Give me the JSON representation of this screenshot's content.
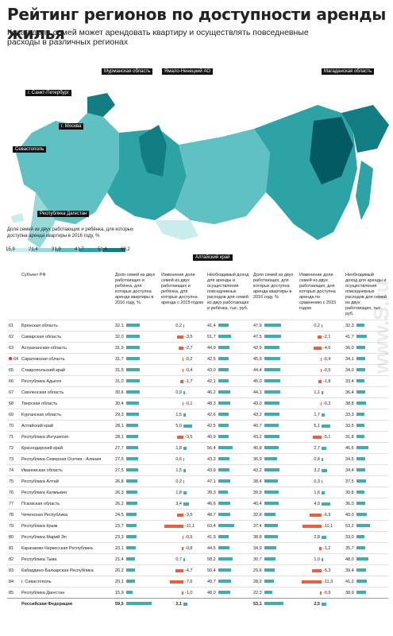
{
  "header": {
    "title": "Рейтинг регионов по доступности аренды жилья",
    "subtitle": "Какая доля семей может арендовать квартиру и осуществлять повседневные расходы в различных регионах"
  },
  "map": {
    "labels": {
      "murmansk": "Мурманская область",
      "yamal": "Ямало-Ненецкий АО",
      "magadan": "Магаданская область",
      "spb": "г. Санкт-Петербург",
      "moscow": "г. Москва",
      "sevastopol": "Севастополь",
      "dagestan": "Республика Дагестан",
      "altai": "Алтайский край"
    },
    "legend_title": "Доля семей из двух работающих и ребёнка, для которых доступна аренда квартиры в 2016 году, %",
    "legend_ticks": [
      "15,9",
      "21,4",
      "31,9",
      "41,7",
      "51,4",
      "60,2"
    ],
    "colors": [
      "#c9ecec",
      "#97d8d8",
      "#5fc1c1",
      "#2ea3a6",
      "#137d84",
      "#045a63"
    ]
  },
  "table": {
    "headers": {
      "subject": "Субъект РФ",
      "share2016": "Доля семей из двух работающих и ребёнка, для которых доступна аренда квартиры в 2016 году, %",
      "change2016": "Изменение доли семей из двух работающих и ребёнка, для которых доступна аренда с 2015 годом",
      "income2016": "Необходимый доход для аренды и осуществления повседневных расходов для семей из двух работающих и ребёнка, тыс. руб.",
      "share2016b": "Доля семей из двух работающих, для которых доступна аренда квартиры в 2016 году, %",
      "change2016b": "Изменение доли семей из двух работающих, для которых доступна аренда по сравнению с 2015 годом",
      "income2016b": "Необходимый доход для аренды и осуществления повседневных расходов для семей из двух работающих, тыс. руб."
    }
  },
  "chart_data": {
    "type": "table",
    "columns": [
      "rank",
      "region",
      "share_child",
      "change_child",
      "income_child",
      "share",
      "change",
      "income"
    ],
    "rows": [
      [
        "61",
        "Брянская область",
        "32,1",
        "0,2",
        "41,4",
        "47,9",
        "0,2",
        "32,3"
      ],
      [
        "62",
        "Самарская область",
        "32,0",
        "-3,5",
        "51,7",
        "47,5",
        "-2,1",
        "41,7"
      ],
      [
        "63",
        "Астраханская область",
        "31,9",
        "-2,7",
        "44,9",
        "42,9",
        "-4,6",
        "36,0"
      ],
      [
        "64",
        "Саратовская область",
        "31,7",
        "-0,2",
        "42,5",
        "45,9",
        "-0,4",
        "34,1"
      ],
      [
        "65",
        "Ставропольский край",
        "31,5",
        "-0,4",
        "43,0",
        "44,4",
        "-0,5",
        "34,0"
      ],
      [
        "66",
        "Республика Адыгея",
        "31,0",
        "-1,7",
        "42,1",
        "45,0",
        "-1,8",
        "33,4"
      ],
      [
        "67",
        "Смоленская область",
        "30,6",
        "0,9",
        "46,2",
        "44,1",
        "1,1",
        "36,4"
      ],
      [
        "68",
        "Тверская область",
        "30,4",
        "-0,1",
        "48,3",
        "43,0",
        "-0,3",
        "38,8"
      ],
      [
        "69",
        "Курганская область",
        "29,3",
        "1,5",
        "42,6",
        "43,2",
        "1,7",
        "33,3"
      ],
      [
        "70",
        "Алтайский край",
        "28,1",
        "5,0",
        "42,5",
        "40,7",
        "5,1",
        "33,5"
      ],
      [
        "71",
        "Республика Ингушетия",
        "28,1",
        "-3,5",
        "40,9",
        "43,2",
        "-5,1",
        "31,8"
      ],
      [
        "72",
        "Краснодарский край",
        "27,7",
        "1,8",
        "56,4",
        "40,8",
        "2,7",
        "46,6"
      ],
      [
        "73",
        "Республика Северная Осетия - Алания",
        "27,5",
        "0,6",
        "43,3",
        "36,9",
        "0,8",
        "34,5"
      ],
      [
        "74",
        "Ивановская область",
        "27,5",
        "1,5",
        "43,9",
        "43,2",
        "3,2",
        "34,4"
      ],
      [
        "75",
        "Республика Алтай",
        "26,8",
        "0,2",
        "47,1",
        "38,4",
        "0,3",
        "37,5"
      ],
      [
        "76",
        "Республика Калмыкия",
        "26,3",
        "1,8",
        "39,3",
        "39,9",
        "1,6",
        "30,8"
      ],
      [
        "77",
        "Псковская область",
        "26,2",
        "3,4",
        "46,6",
        "40,4",
        "4,9",
        "36,0"
      ],
      [
        "78",
        "Чеченская Республика",
        "24,5",
        "-3,5",
        "48,7",
        "32,8",
        "-6,9",
        "40,0"
      ],
      [
        "79",
        "Республика Крым",
        "23,7",
        "-11,1",
        "63,4",
        "37,4",
        "-11,1",
        "53,2"
      ],
      [
        "80",
        "Республика Марий Эл",
        "23,3",
        "-0,5",
        "41,9",
        "38,8",
        "2,8",
        "33,0"
      ],
      [
        "81",
        "Карачаево-Черкесская Республика",
        "23,1",
        "-0,8",
        "44,5",
        "34,9",
        "-1,2",
        "35,7"
      ],
      [
        "82",
        "Республика Тыва",
        "21,4",
        "0,7",
        "58,2",
        "30,7",
        "1,0",
        "48,0"
      ],
      [
        "83",
        "Кабардино-Балкарская Республика",
        "20,2",
        "-4,7",
        "50,4",
        "29,6",
        "-5,3",
        "39,4"
      ],
      [
        "84",
        "г. Севастополь",
        "20,1",
        "-7,6",
        "49,7",
        "28,2",
        "-11,3",
        "41,2"
      ],
      [
        "85",
        "Республика Дагестан",
        "15,9",
        "-1,0",
        "48,0",
        "22,3",
        "-0,9",
        "38,9"
      ],
      [
        "",
        "Российская Федерация",
        "59,5",
        "2,1",
        "",
        "53,1",
        "2,5",
        ""
      ]
    ]
  }
}
